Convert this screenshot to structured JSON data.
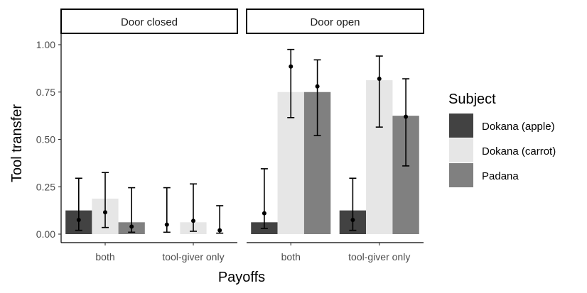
{
  "chart_data": {
    "type": "bar",
    "facets": [
      "Door closed",
      "Door open"
    ],
    "categories": [
      "both",
      "tool-giver only"
    ],
    "xlabel": "Payoffs",
    "ylabel": "Tool transfer",
    "ylim": [
      0,
      1.05
    ],
    "yticks": [
      "0.00",
      "0.25",
      "0.50",
      "0.75",
      "1.00"
    ],
    "legend": {
      "title": "Subject",
      "position": "right"
    },
    "series": [
      {
        "name": "Dokana (apple)",
        "color": "#424242",
        "values": [
          [
            0.125,
            0.0
          ],
          [
            0.0625,
            0.125
          ]
        ],
        "points": [
          [
            0.075,
            0.05
          ],
          [
            0.11,
            0.075
          ]
        ],
        "lower": [
          [
            0.02,
            0.01
          ],
          [
            0.03,
            0.02
          ]
        ],
        "upper": [
          [
            0.295,
            0.245
          ],
          [
            0.345,
            0.295
          ]
        ]
      },
      {
        "name": "Dokana (carrot)",
        "color": "#e6e6e6",
        "values": [
          [
            0.1875,
            0.0625
          ],
          [
            0.75,
            0.8125
          ]
        ],
        "points": [
          [
            0.115,
            0.07
          ],
          [
            0.885,
            0.82
          ]
        ],
        "lower": [
          [
            0.035,
            0.015
          ],
          [
            0.615,
            0.565
          ]
        ],
        "upper": [
          [
            0.325,
            0.265
          ],
          [
            0.975,
            0.94
          ]
        ]
      },
      {
        "name": "Padana",
        "color": "#808080",
        "values": [
          [
            0.0625,
            0.0
          ],
          [
            0.75,
            0.625
          ]
        ],
        "points": [
          [
            0.04,
            0.02
          ],
          [
            0.78,
            0.62
          ]
        ],
        "lower": [
          [
            0.01,
            0.005
          ],
          [
            0.52,
            0.36
          ]
        ],
        "upper": [
          [
            0.245,
            0.15
          ],
          [
            0.92,
            0.82
          ]
        ]
      }
    ]
  }
}
